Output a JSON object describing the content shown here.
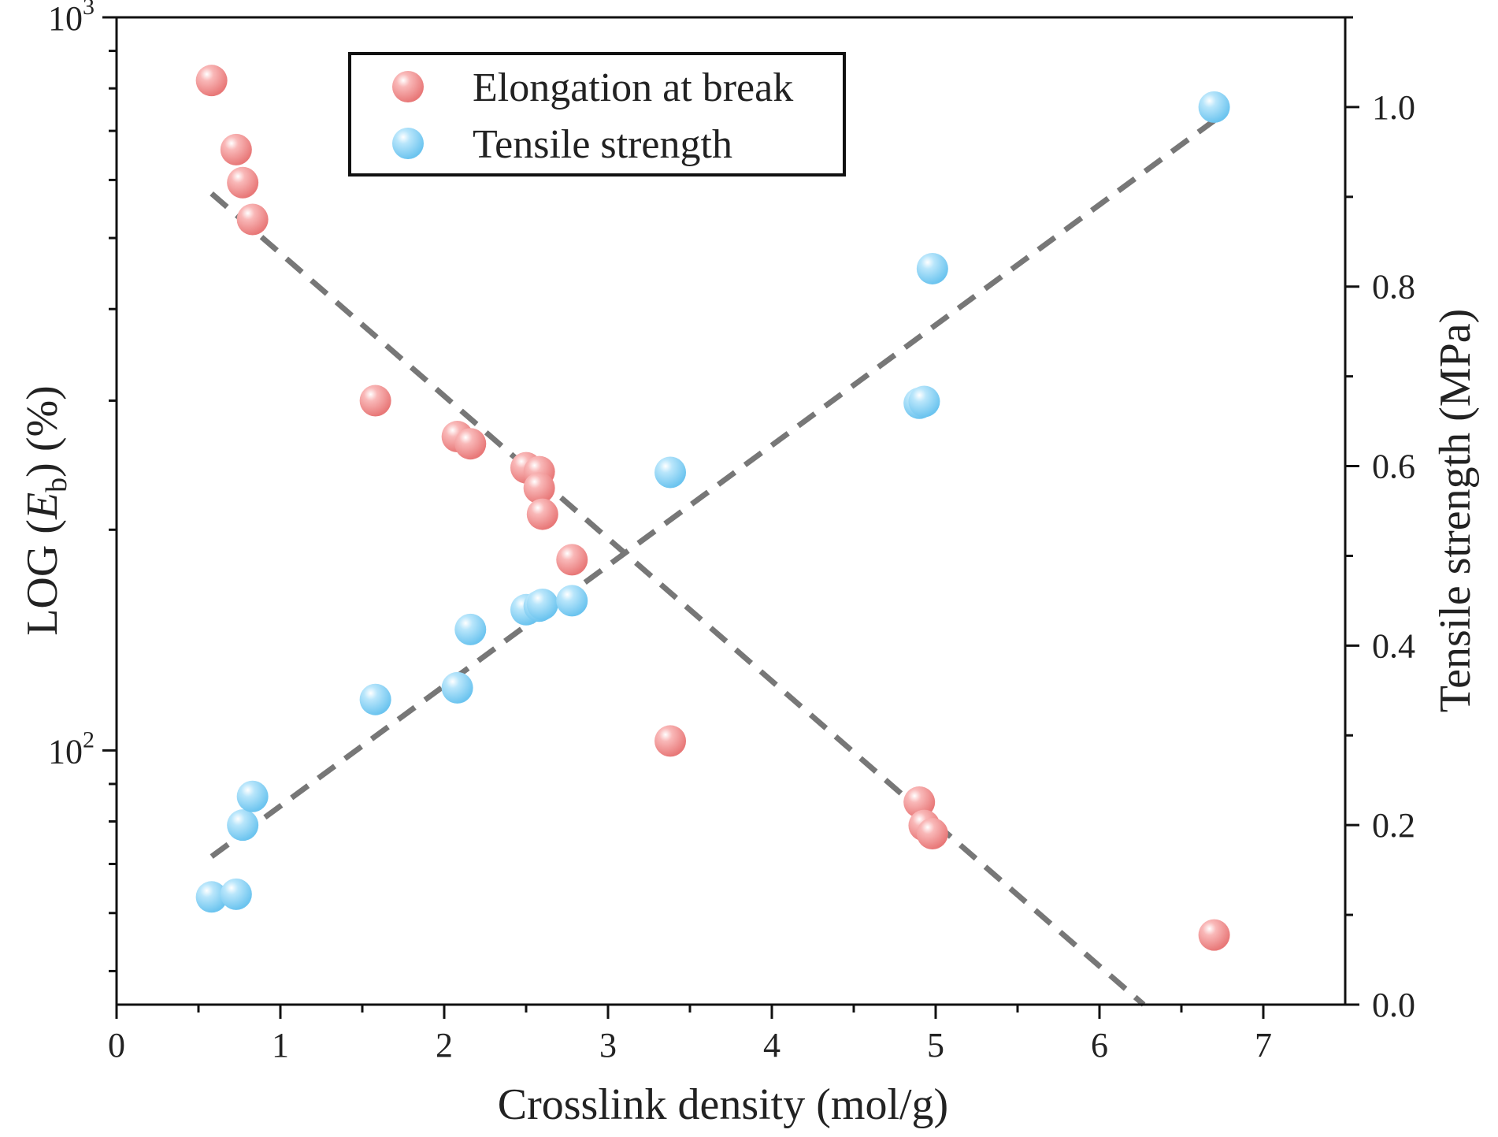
{
  "chart_data": {
    "type": "scatter",
    "xlabel": "Crosslink density (mol/g)",
    "ylabel_left": {
      "prefix": "LOG (",
      "var": "E",
      "sub": "b",
      "suffix": ") (%)"
    },
    "ylabel_right": "Tensile strength (MPa)",
    "xlim": [
      0,
      7.5
    ],
    "ylim_left": [
      45,
      1000
    ],
    "ylim_right": [
      0,
      1.1
    ],
    "y_left_scale": "log",
    "x_ticks": [
      "0",
      "1",
      "2",
      "3",
      "4",
      "5",
      "6",
      "7"
    ],
    "y_left_ticks": [
      {
        "base": "10",
        "exp": "2"
      },
      {
        "base": "10",
        "exp": "3"
      }
    ],
    "y_right_ticks": [
      "0.0",
      "0.2",
      "0.4",
      "0.6",
      "0.8",
      "1.0"
    ],
    "legend_position": "top-center",
    "series": [
      {
        "name": "Elongation at break",
        "axis": "left",
        "color": "#f28b8b",
        "points": [
          [
            0.58,
            820
          ],
          [
            0.73,
            660
          ],
          [
            0.77,
            595
          ],
          [
            0.83,
            530
          ],
          [
            1.58,
            300
          ],
          [
            2.08,
            268
          ],
          [
            2.16,
            262
          ],
          [
            2.5,
            243
          ],
          [
            2.58,
            240
          ],
          [
            2.58,
            228
          ],
          [
            2.6,
            210
          ],
          [
            2.78,
            182
          ],
          [
            3.38,
            103
          ],
          [
            4.9,
            85
          ],
          [
            4.93,
            79
          ],
          [
            4.98,
            77
          ],
          [
            6.7,
            56
          ]
        ]
      },
      {
        "name": "Tensile strength",
        "axis": "right",
        "color": "#8fd3f5",
        "points": [
          [
            0.58,
            0.12
          ],
          [
            0.73,
            0.123
          ],
          [
            0.77,
            0.2
          ],
          [
            0.83,
            0.232
          ],
          [
            1.58,
            0.34
          ],
          [
            2.08,
            0.353
          ],
          [
            2.16,
            0.418
          ],
          [
            2.5,
            0.44
          ],
          [
            2.58,
            0.444
          ],
          [
            2.6,
            0.446
          ],
          [
            2.78,
            0.45
          ],
          [
            3.38,
            0.593
          ],
          [
            4.9,
            0.67
          ],
          [
            4.93,
            0.672
          ],
          [
            4.98,
            0.82
          ],
          [
            6.7,
            1.0
          ]
        ]
      }
    ],
    "fit_lines": [
      {
        "axis": "left",
        "color": "#777777",
        "points": [
          [
            0.58,
            575
          ],
          [
            6.27,
            45
          ]
        ]
      },
      {
        "axis": "right",
        "color": "#777777",
        "points": [
          [
            0.58,
            0.165
          ],
          [
            6.7,
            0.985
          ]
        ]
      }
    ]
  }
}
